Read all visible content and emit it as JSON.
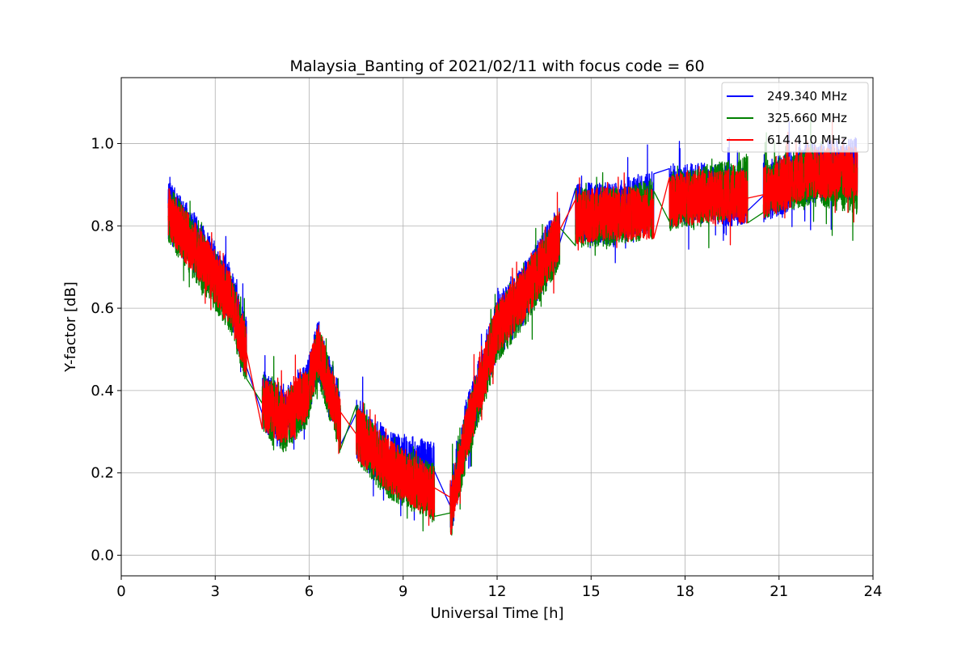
{
  "chart_data": {
    "type": "line",
    "title": "Malaysia_Banting of 2021/02/11 with focus code = 60",
    "xlabel": "Universal Time [h]",
    "ylabel": "Y-factor [dB]",
    "xlim": [
      0,
      24
    ],
    "ylim": [
      -0.05,
      1.16
    ],
    "xticks": [
      0,
      3,
      6,
      9,
      12,
      15,
      18,
      21,
      24
    ],
    "yticks": [
      0.0,
      0.2,
      0.4,
      0.6,
      0.8,
      1.0
    ],
    "ytick_labels": [
      "0.0",
      "0.2",
      "0.4",
      "0.6",
      "0.8",
      "1.0"
    ],
    "grid": true,
    "legend_position": "top-right",
    "series": [
      {
        "name": "249.340 MHz",
        "color": "#0000ff",
        "noise": 0.075,
        "segments": [
          {
            "x": [
              1.5,
              2.5,
              3.5,
              4.0
            ],
            "y": [
              0.84,
              0.74,
              0.63,
              0.5
            ]
          },
          {
            "x": [
              4.5,
              5.2,
              5.9,
              6.3,
              7.0
            ],
            "y": [
              0.38,
              0.33,
              0.39,
              0.5,
              0.33
            ]
          },
          {
            "x": [
              7.5,
              8.5,
              10.0
            ],
            "y": [
              0.31,
              0.23,
              0.2
            ]
          },
          {
            "x": [
              10.5,
              11.0,
              12.0,
              13.0,
              14.0
            ],
            "y": [
              0.11,
              0.3,
              0.55,
              0.65,
              0.78
            ]
          },
          {
            "x": [
              14.5,
              15.5,
              17.0
            ],
            "y": [
              0.83,
              0.83,
              0.86
            ]
          },
          {
            "x": [
              17.5,
              18.5,
              20.0
            ],
            "y": [
              0.87,
              0.88,
              0.87
            ]
          },
          {
            "x": [
              20.5,
              22.0,
              23.5
            ],
            "y": [
              0.88,
              0.93,
              0.94
            ]
          }
        ]
      },
      {
        "name": "325.660 MHz",
        "color": "#008000",
        "noise": 0.072,
        "segments": [
          {
            "x": [
              1.5,
              2.5,
              3.5,
              4.0
            ],
            "y": [
              0.83,
              0.72,
              0.61,
              0.48
            ]
          },
          {
            "x": [
              4.5,
              5.2,
              5.9,
              6.3,
              7.0
            ],
            "y": [
              0.37,
              0.32,
              0.38,
              0.49,
              0.31
            ]
          },
          {
            "x": [
              7.5,
              8.5,
              10.0
            ],
            "y": [
              0.3,
              0.21,
              0.15
            ]
          },
          {
            "x": [
              10.5,
              11.0,
              12.0,
              13.0,
              14.0
            ],
            "y": [
              0.1,
              0.28,
              0.54,
              0.64,
              0.77
            ]
          },
          {
            "x": [
              14.5,
              15.5,
              17.0
            ],
            "y": [
              0.82,
              0.82,
              0.84
            ]
          },
          {
            "x": [
              17.5,
              18.5,
              20.0
            ],
            "y": [
              0.86,
              0.87,
              0.9
            ]
          },
          {
            "x": [
              20.5,
              22.0,
              23.5
            ],
            "y": [
              0.89,
              0.92,
              0.9
            ]
          }
        ]
      },
      {
        "name": "614.410 MHz",
        "color": "#ff0000",
        "noise": 0.065,
        "segments": [
          {
            "x": [
              1.5,
              2.5,
              3.5,
              4.0
            ],
            "y": [
              0.83,
              0.73,
              0.62,
              0.49
            ]
          },
          {
            "x": [
              4.5,
              5.2,
              5.9,
              6.3,
              7.0
            ],
            "y": [
              0.37,
              0.33,
              0.39,
              0.5,
              0.32
            ]
          },
          {
            "x": [
              7.5,
              8.5,
              10.0
            ],
            "y": [
              0.3,
              0.22,
              0.15
            ]
          },
          {
            "x": [
              10.5,
              11.0,
              12.0,
              13.0,
              14.0
            ],
            "y": [
              0.1,
              0.29,
              0.55,
              0.65,
              0.78
            ]
          },
          {
            "x": [
              14.5,
              15.5,
              17.0
            ],
            "y": [
              0.82,
              0.83,
              0.83
            ]
          },
          {
            "x": [
              17.5,
              18.5,
              20.0
            ],
            "y": [
              0.86,
              0.87,
              0.87
            ]
          },
          {
            "x": [
              20.5,
              22.0,
              23.5
            ],
            "y": [
              0.88,
              0.93,
              0.93
            ]
          }
        ]
      }
    ]
  }
}
